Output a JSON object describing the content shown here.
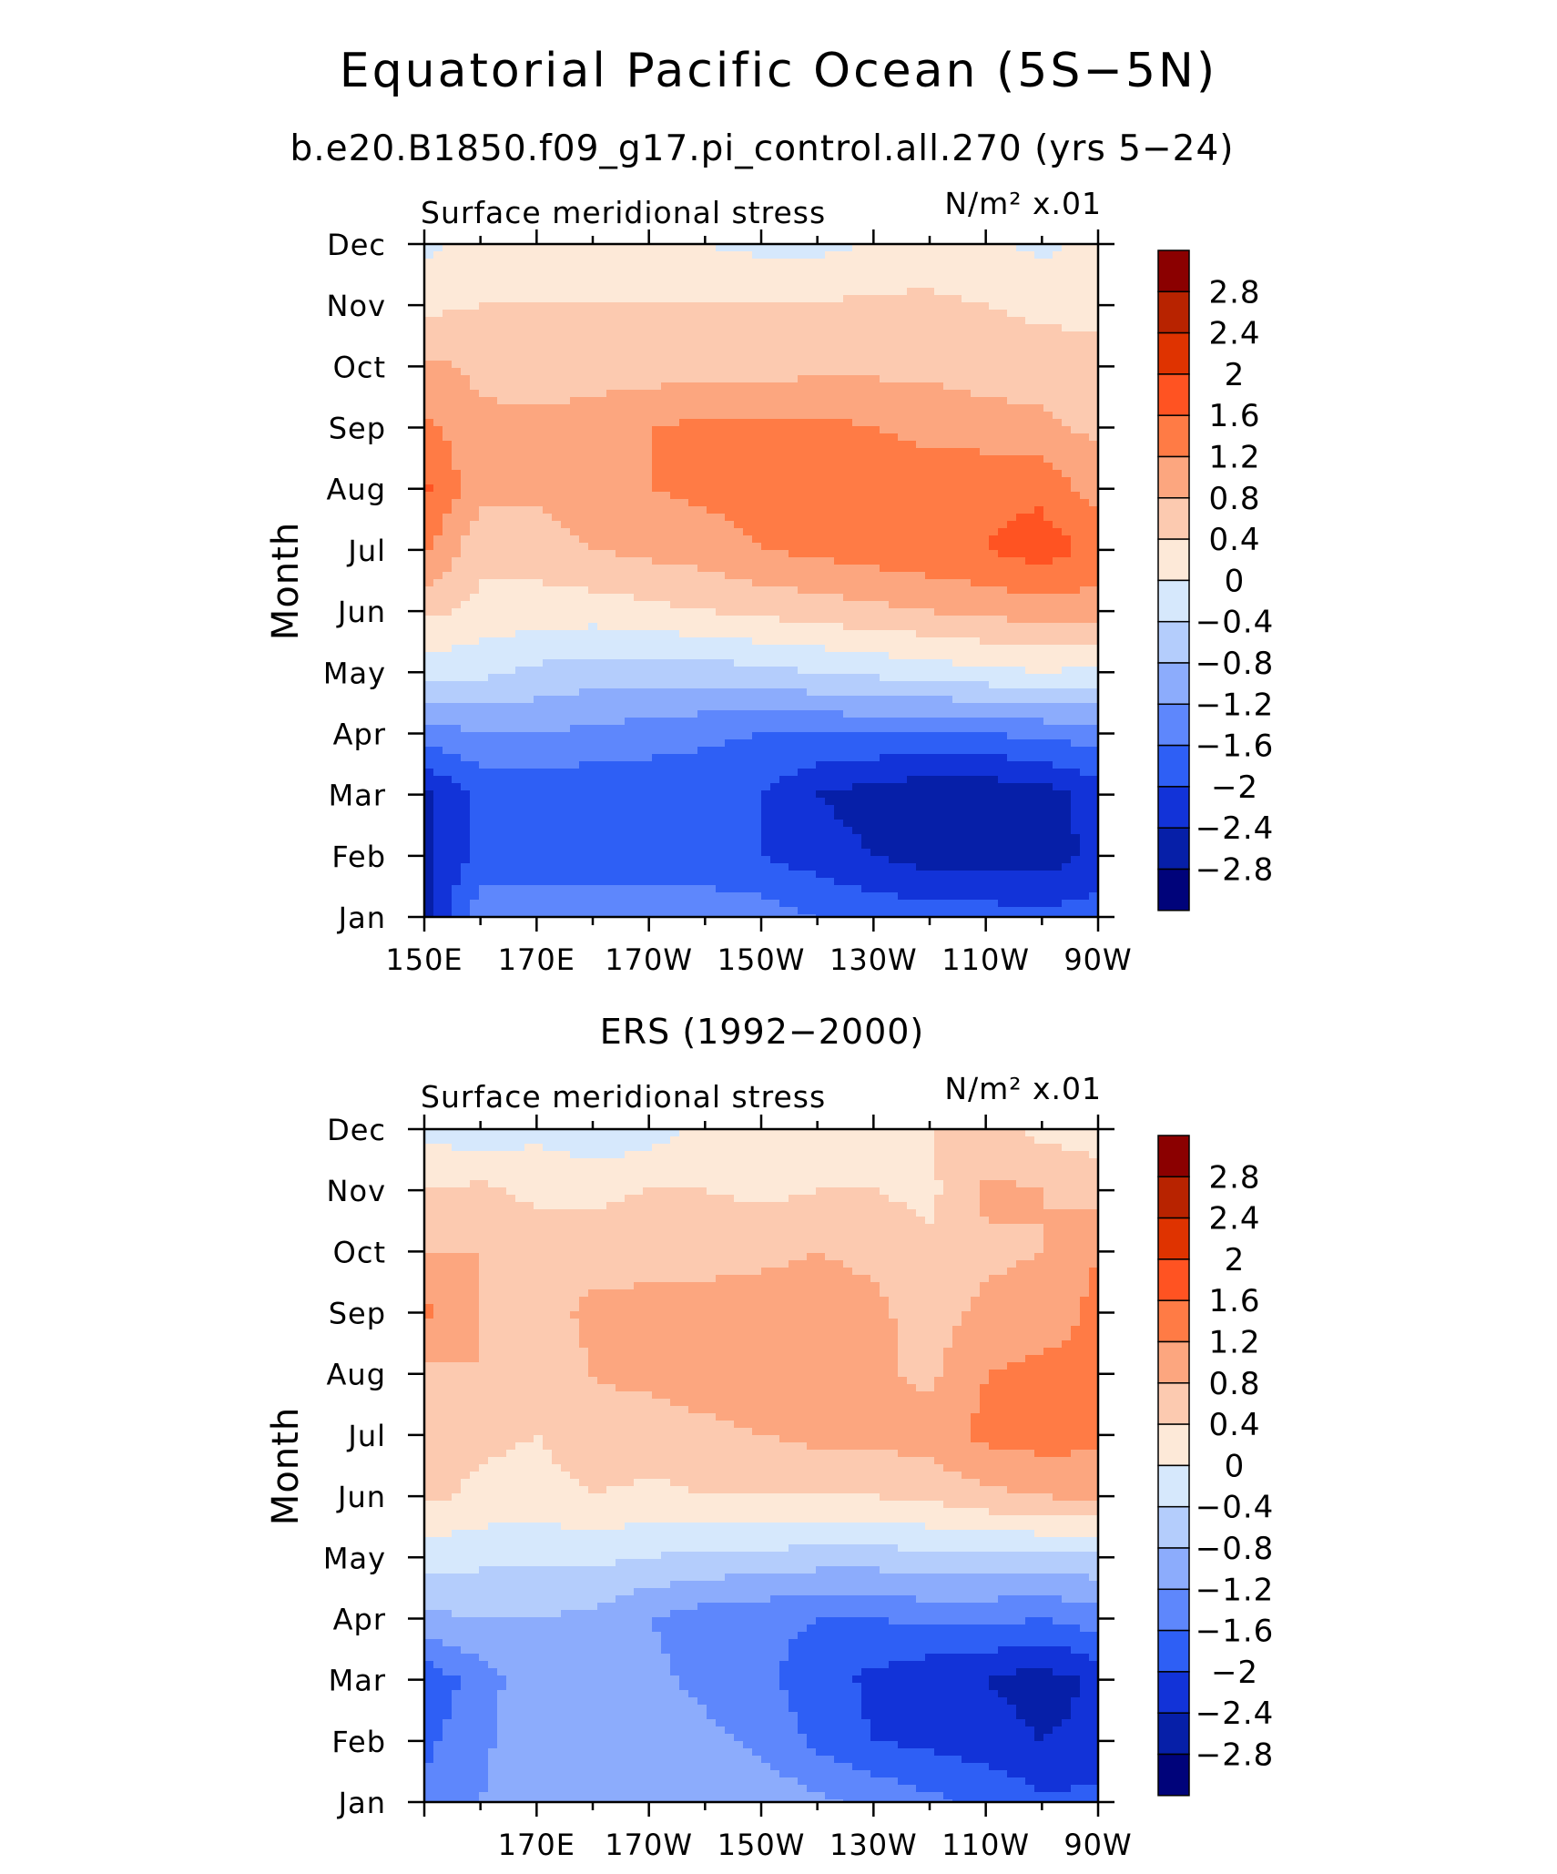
{
  "header": {
    "title": "Equatorial Pacific Ocean (5S−5N)",
    "subtitle": "b.e20.B1850.f09_g17.pi_control.all.270 (yrs 5−24)"
  },
  "contour_levels": [
    -2.8,
    -2.4,
    -2,
    -1.6,
    -1.2,
    -0.8,
    -0.4,
    0,
    0.4,
    0.8,
    1.2,
    1.6,
    2,
    2.4,
    2.8
  ],
  "colorbar": {
    "labels": [
      "2.8",
      "2.4",
      "2",
      "1.6",
      "1.2",
      "0.8",
      "0.4",
      "0",
      "−0.4",
      "−0.8",
      "−1.2",
      "−1.6",
      "−2",
      "−2.4",
      "−2.8"
    ],
    "colors_top_to_bottom": [
      "#8b0000",
      "#b82300",
      "#df3300",
      "#ff5322",
      "#ff7b45",
      "#fca67f",
      "#fccab0",
      "#fde9d8",
      "#d6e8fc",
      "#b4cdfc",
      "#8cacfc",
      "#5e87fc",
      "#2e5ff5",
      "#1233d8",
      "#061fa8",
      "#00037a"
    ]
  },
  "chart_data": [
    {
      "type": "heatmap",
      "title": "",
      "left_string": "Surface meridional stress",
      "units": "N/m² x.01",
      "xlabel": "",
      "ylabel": "Month",
      "x": [
        150,
        160,
        170,
        180,
        190,
        200,
        210,
        220,
        230,
        240,
        250,
        260,
        270
      ],
      "x_ticks": [
        "150E",
        "170E",
        "170W",
        "150W",
        "130W",
        "110W",
        "90W"
      ],
      "y_ticks": [
        "Jan",
        "Feb",
        "Mar",
        "Apr",
        "May",
        "Jun",
        "Jul",
        "Aug",
        "Sep",
        "Oct",
        "Nov",
        "Dec"
      ],
      "xlim": [
        150,
        270
      ],
      "values": [
        [
          -2.5,
          -1.3,
          -1.2,
          -1.2,
          -1.2,
          -1.3,
          -1.4,
          -1.6,
          -1.7,
          -1.8,
          -1.8,
          -1.9,
          -1.8
        ],
        [
          -2.5,
          -1.9,
          -1.9,
          -1.9,
          -1.9,
          -1.9,
          -2.0,
          -2.2,
          -2.4,
          -2.6,
          -2.6,
          -2.6,
          -2.3
        ],
        [
          -2.5,
          -1.9,
          -1.9,
          -1.9,
          -1.9,
          -1.9,
          -2.0,
          -2.4,
          -2.6,
          -2.7,
          -2.7,
          -2.6,
          -2.2
        ],
        [
          -1.4,
          -1.2,
          -1.2,
          -1.3,
          -1.4,
          -1.5,
          -1.6,
          -1.6,
          -1.6,
          -1.6,
          -1.6,
          -1.5,
          -1.4
        ],
        [
          -0.2,
          -0.3,
          -0.5,
          -0.6,
          -0.6,
          -0.6,
          -0.5,
          -0.4,
          -0.3,
          -0.2,
          -0.1,
          0.0,
          -0.1
        ],
        [
          0.5,
          0.3,
          0.2,
          0.2,
          0.3,
          0.4,
          0.5,
          0.6,
          0.7,
          0.8,
          0.9,
          1.0,
          1.0
        ],
        [
          1.3,
          0.5,
          0.6,
          0.8,
          0.9,
          1.0,
          1.2,
          1.3,
          1.4,
          1.5,
          1.6,
          1.8,
          1.5
        ],
        [
          1.7,
          0.9,
          0.9,
          1.0,
          1.2,
          1.3,
          1.4,
          1.4,
          1.4,
          1.4,
          1.5,
          1.5,
          1.0
        ],
        [
          1.3,
          0.9,
          0.9,
          1.0,
          1.2,
          1.3,
          1.3,
          1.3,
          1.2,
          1.1,
          1.0,
          0.9,
          0.7
        ],
        [
          0.9,
          0.7,
          0.6,
          0.6,
          0.6,
          0.6,
          0.6,
          0.7,
          0.7,
          0.7,
          0.6,
          0.6,
          0.5
        ],
        [
          0.3,
          0.4,
          0.4,
          0.4,
          0.4,
          0.4,
          0.4,
          0.4,
          0.5,
          0.5,
          0.4,
          0.3,
          0.3
        ],
        [
          -0.1,
          0.1,
          0.1,
          0.1,
          0.0,
          0.0,
          -0.1,
          -0.1,
          0.0,
          0.1,
          0.1,
          -0.1,
          0.1
        ]
      ]
    },
    {
      "type": "heatmap",
      "title": "ERS (1992−2000)",
      "left_string": "Surface meridional stress",
      "units": "N/m² x.01",
      "xlabel": "",
      "ylabel": "Month",
      "x": [
        150,
        160,
        170,
        180,
        190,
        200,
        210,
        220,
        230,
        240,
        250,
        260,
        270
      ],
      "x_ticks": [
        "170E",
        "170W",
        "150W",
        "130W",
        "110W",
        "90W"
      ],
      "y_ticks": [
        "Jan",
        "Feb",
        "Mar",
        "Apr",
        "May",
        "Jun",
        "Jul",
        "Aug",
        "Sep",
        "Oct",
        "Nov",
        "Dec"
      ],
      "xlim": [
        150,
        270
      ],
      "values": [
        [
          -1.5,
          -1.2,
          -0.9,
          -1.1,
          -0.8,
          -0.8,
          -0.9,
          -1.1,
          -1.3,
          -1.5,
          -1.7,
          -1.9,
          -1.9
        ],
        [
          -1.7,
          -1.3,
          -0.9,
          -1.2,
          -1.0,
          -1.1,
          -1.3,
          -1.7,
          -2.0,
          -2.1,
          -2.2,
          -2.4,
          -2.3
        ],
        [
          -1.9,
          -1.4,
          -0.9,
          -1.1,
          -1.1,
          -1.3,
          -1.5,
          -1.8,
          -2.1,
          -2.3,
          -2.4,
          -2.6,
          -2.3
        ],
        [
          -0.9,
          -0.8,
          -0.8,
          -0.9,
          -1.2,
          -1.4,
          -1.5,
          -1.6,
          -1.6,
          -1.5,
          -1.5,
          -1.6,
          -1.4
        ],
        [
          -0.2,
          -0.3,
          -0.3,
          -0.3,
          -0.4,
          -0.5,
          -0.5,
          -0.6,
          -0.6,
          -0.5,
          -0.5,
          -0.5,
          -0.5
        ],
        [
          0.5,
          0.3,
          0.2,
          0.4,
          0.3,
          0.4,
          0.4,
          0.4,
          0.4,
          0.5,
          0.7,
          0.8,
          0.9
        ],
        [
          0.6,
          0.5,
          0.4,
          0.7,
          0.6,
          0.7,
          0.8,
          0.9,
          0.9,
          1.0,
          1.3,
          1.4,
          1.3
        ],
        [
          0.7,
          0.8,
          0.6,
          0.8,
          0.9,
          1.0,
          1.0,
          1.0,
          0.9,
          0.7,
          1.2,
          1.3,
          1.3
        ],
        [
          1.3,
          0.8,
          0.6,
          0.9,
          0.9,
          0.9,
          1.0,
          1.0,
          0.9,
          0.6,
          0.9,
          1.0,
          1.3
        ],
        [
          0.8,
          0.8,
          0.6,
          0.6,
          0.7,
          0.7,
          0.7,
          0.8,
          0.7,
          0.5,
          0.7,
          0.8,
          1.2
        ],
        [
          0.4,
          0.5,
          0.3,
          0.3,
          0.4,
          0.4,
          0.3,
          0.4,
          0.4,
          0.3,
          0.9,
          0.8,
          0.6
        ],
        [
          -0.1,
          -0.3,
          -0.1,
          -0.3,
          -0.2,
          0.1,
          0.1,
          0.2,
          0.3,
          0.4,
          0.5,
          0.3,
          0.2
        ]
      ]
    }
  ]
}
